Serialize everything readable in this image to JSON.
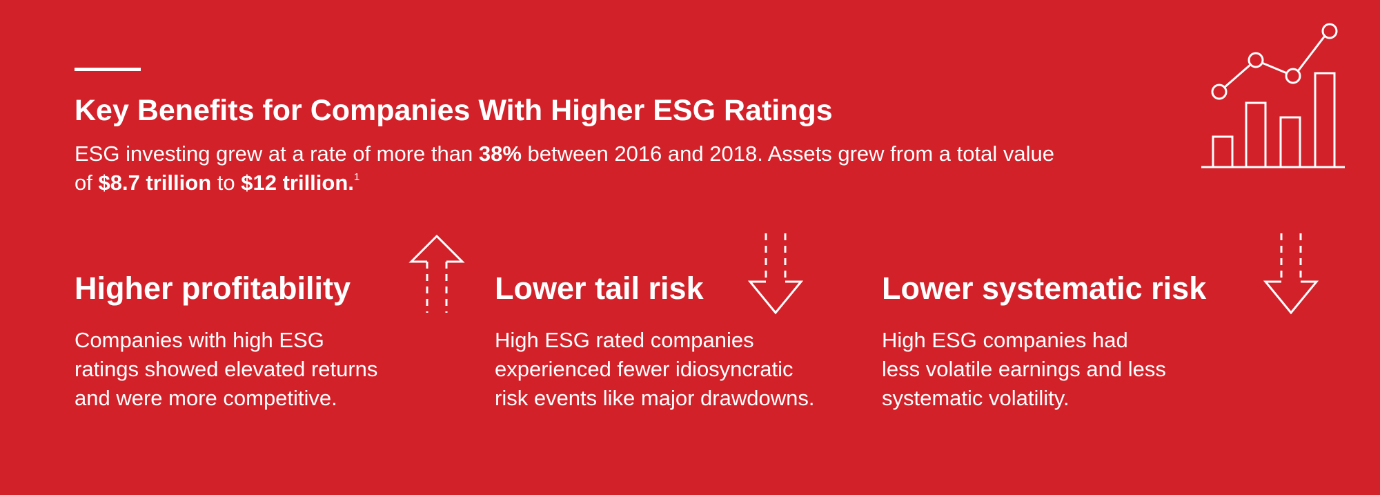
{
  "header": {
    "title": "Key Benefits for Companies With Higher ESG Ratings",
    "intro": [
      [
        {
          "text": "ESG investing grew at a rate of more than "
        },
        {
          "text": "38%",
          "bold": true
        },
        {
          "text": " between 2016 and 2018. Assets grew from a total value"
        }
      ],
      [
        {
          "text": "of "
        },
        {
          "text": "$8.7 trillion",
          "bold": true
        },
        {
          "text": " to "
        },
        {
          "text": "$12 trillion.",
          "bold": true
        }
      ]
    ],
    "footnote": "1"
  },
  "benefits": [
    {
      "title": "Higher profitability",
      "direction": "up",
      "body": [
        "Companies with high ESG",
        "ratings showed elevated returns",
        "and were more competitive."
      ]
    },
    {
      "title": "Lower tail risk",
      "direction": "down",
      "body": [
        "High ESG rated companies",
        "experienced fewer idiosyncratic",
        "risk events like major drawdowns."
      ]
    },
    {
      "title": "Lower systematic risk",
      "direction": "down",
      "body": [
        "High ESG companies had",
        "less volatile earnings and less",
        "systematic volatility."
      ]
    }
  ]
}
